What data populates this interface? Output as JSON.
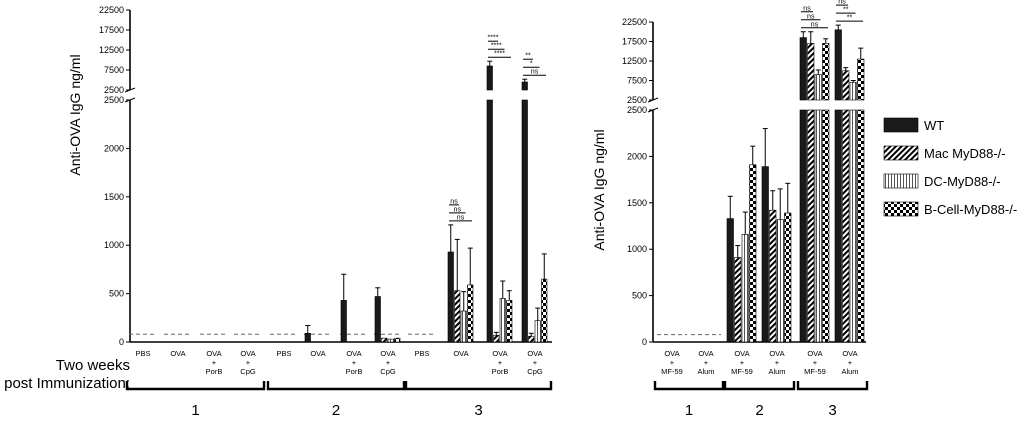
{
  "chart_data": [
    {
      "type": "bar",
      "panel": "left",
      "ylabel": "Anti-OVA IgG  ng/ml",
      "yticks_lower": [
        0,
        500,
        1000,
        1500,
        2000,
        2500
      ],
      "yticks_upper": [
        2500,
        7500,
        12500,
        17500,
        22500
      ],
      "ylim_lower": [
        0,
        2500
      ],
      "ylim_upper": [
        2500,
        22500
      ],
      "series": [
        {
          "name": "WT"
        },
        {
          "name": "Mac MyD88-/-"
        },
        {
          "name": "DC-MyD88-/-"
        },
        {
          "name": "B-Cell-MyD88-/-"
        }
      ],
      "row_header": "Two weeks\npost Immunization:",
      "row_header_lines": [
        "Two weeks",
        "post Immunization:"
      ],
      "groups": [
        {
          "label": "1",
          "categories": [
            {
              "label": "PBS",
              "lines": [
                "PBS"
              ],
              "values": [],
              "errors": [],
              "baseline": 80
            },
            {
              "label": "OVA",
              "lines": [
                "OVA"
              ],
              "values": [],
              "errors": [],
              "baseline": 80
            },
            {
              "label": "OVA + PorB",
              "lines": [
                "OVA",
                "+",
                "PorB"
              ],
              "values": [],
              "errors": [],
              "baseline": 80
            },
            {
              "label": "OVA + CpG",
              "lines": [
                "OVA",
                "+",
                "CpG"
              ],
              "values": [],
              "errors": [],
              "baseline": 80
            }
          ]
        },
        {
          "label": "2",
          "categories": [
            {
              "label": "PBS",
              "lines": [
                "PBS"
              ],
              "values": [],
              "errors": [],
              "baseline": 80
            },
            {
              "label": "OVA",
              "lines": [
                "OVA"
              ],
              "values": [
                90
              ],
              "errors": [
                80
              ],
              "baseline": 80
            },
            {
              "label": "OVA + PorB",
              "lines": [
                "OVA",
                "+",
                "PorB"
              ],
              "values": [
                430
              ],
              "errors": [
                270
              ],
              "baseline": 80
            },
            {
              "label": "OVA + CpG",
              "lines": [
                "OVA",
                "+",
                "CpG"
              ],
              "values": [
                470,
                40,
                30,
                40
              ],
              "errors": [
                90,
                0,
                0,
                0
              ],
              "baseline": 80
            }
          ]
        },
        {
          "label": "3",
          "categories": [
            {
              "label": "PBS",
              "lines": [
                "PBS"
              ],
              "values": [],
              "errors": [],
              "baseline": 80
            },
            {
              "label": "OVA",
              "lines": [
                "OVA"
              ],
              "values": [
                930,
                530,
                320,
                590
              ],
              "errors": [
                280,
                530,
                200,
                380
              ],
              "baseline": 0,
              "significance": [
                "ns",
                "ns",
                "ns"
              ]
            },
            {
              "label": "OVA + PorB",
              "lines": [
                "OVA",
                "+",
                "PorB"
              ],
              "values": [
                8500,
                70,
                450,
                430
              ],
              "errors": [
                1200,
                30,
                180,
                100
              ],
              "baseline": 0,
              "significance": [
                "****",
                "****",
                "****"
              ]
            },
            {
              "label": "OVA + CpG",
              "lines": [
                "OVA",
                "+",
                "CpG"
              ],
              "values": [
                4500,
                60,
                220,
                650
              ],
              "errors": [
                700,
                30,
                130,
                260
              ],
              "baseline": 0,
              "significance": [
                "**",
                "*",
                "ns"
              ]
            }
          ]
        }
      ]
    },
    {
      "type": "bar",
      "panel": "right",
      "ylabel": "Anti-OVA IgG  ng/ml",
      "yticks_lower": [
        0,
        500,
        1000,
        1500,
        2000,
        2500
      ],
      "yticks_upper": [
        2500,
        7500,
        12500,
        17500,
        22500
      ],
      "ylim_lower": [
        0,
        2500
      ],
      "ylim_upper": [
        2500,
        22500
      ],
      "series": [
        {
          "name": "WT"
        },
        {
          "name": "Mac MyD88-/-"
        },
        {
          "name": "DC-MyD88-/-"
        },
        {
          "name": "B-Cell-MyD88-/-"
        }
      ],
      "groups": [
        {
          "label": "1",
          "categories": [
            {
              "label": "OVA + MF-59",
              "lines": [
                "OVA",
                "+",
                "MF-59"
              ],
              "values": [],
              "errors": [],
              "baseline": 80
            },
            {
              "label": "OVA + Alum",
              "lines": [
                "OVA",
                "+",
                "Alum"
              ],
              "values": [],
              "errors": [],
              "baseline": 80
            }
          ]
        },
        {
          "label": "2",
          "categories": [
            {
              "label": "OVA + MF-59",
              "lines": [
                "OVA",
                "+",
                "MF-59"
              ],
              "values": [
                1330,
                910,
                1160,
                1910
              ],
              "errors": [
                240,
                130,
                240,
                200
              ],
              "baseline": 0
            },
            {
              "label": "OVA + Alum",
              "lines": [
                "OVA",
                "+",
                "Alum"
              ],
              "values": [
                1890,
                1420,
                1320,
                1390
              ],
              "errors": [
                410,
                210,
                330,
                320
              ],
              "baseline": 0
            }
          ]
        },
        {
          "label": "3",
          "categories": [
            {
              "label": "OVA + MF-59",
              "lines": [
                "OVA",
                "+",
                "MF-59"
              ],
              "values": [
                18500,
                17000,
                9000,
                17000
              ],
              "errors": [
                1500,
                3000,
                1200,
                1200
              ],
              "baseline": 0,
              "significance": [
                "ns",
                "ns",
                "ns"
              ]
            },
            {
              "label": "OVA + Alum",
              "lines": [
                "OVA",
                "+",
                "Alum"
              ],
              "values": [
                20500,
                10000,
                7000,
                13000
              ],
              "errors": [
                1200,
                800,
                500,
                2800
              ],
              "baseline": 0,
              "significance": [
                "ns",
                "**",
                "**"
              ]
            }
          ]
        }
      ]
    }
  ]
}
